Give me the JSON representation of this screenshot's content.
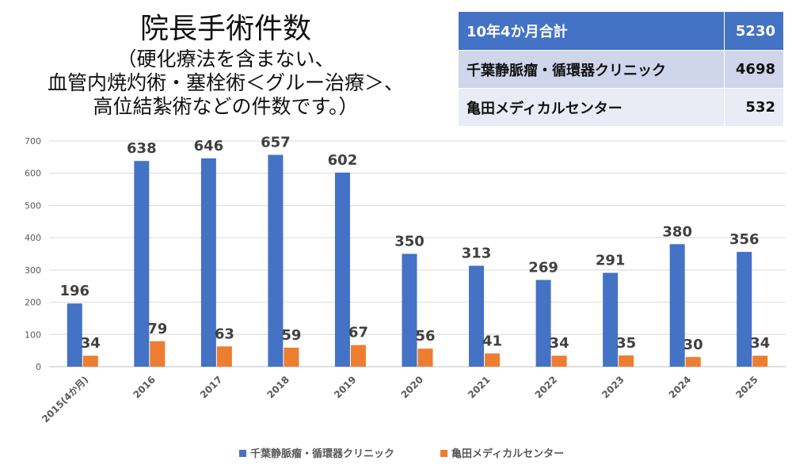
{
  "title": {
    "main": "院長手術件数",
    "sub_lines": [
      "（硬化療法を含まない、",
      "血管内焼灼術・塞栓術＜グルー治療＞、",
      "高位結紮術などの件数です。）"
    ]
  },
  "summary_table": {
    "header": {
      "label": "10年4か月合計",
      "value": "5230"
    },
    "rows": [
      {
        "label": "千葉静脈瘤・循環器クリニック",
        "value": "4698"
      },
      {
        "label": "亀田メディカルセンター",
        "value": "532"
      }
    ]
  },
  "colors": {
    "series1": "#4472c4",
    "series2": "#ed7d31",
    "grid": "#d9d9d9",
    "axis_text": "#595959",
    "label_text": "#404040"
  },
  "chart_data": {
    "type": "bar",
    "categories": [
      "2015(4か月)",
      "2016",
      "2017",
      "2018",
      "2019",
      "2020",
      "2021",
      "2022",
      "2023",
      "2024",
      "2025"
    ],
    "series": [
      {
        "name": "千葉静脈瘤・循環器クリニック",
        "values": [
          196,
          638,
          646,
          657,
          602,
          350,
          313,
          269,
          291,
          380,
          356
        ]
      },
      {
        "name": "亀田メディカルセンター",
        "values": [
          34,
          79,
          63,
          59,
          67,
          56,
          41,
          34,
          35,
          30,
          34
        ]
      }
    ],
    "ylim": [
      0,
      700
    ],
    "yticks": [
      0,
      100,
      200,
      300,
      400,
      500,
      600,
      700
    ],
    "grid": true,
    "legend": "bottom"
  }
}
